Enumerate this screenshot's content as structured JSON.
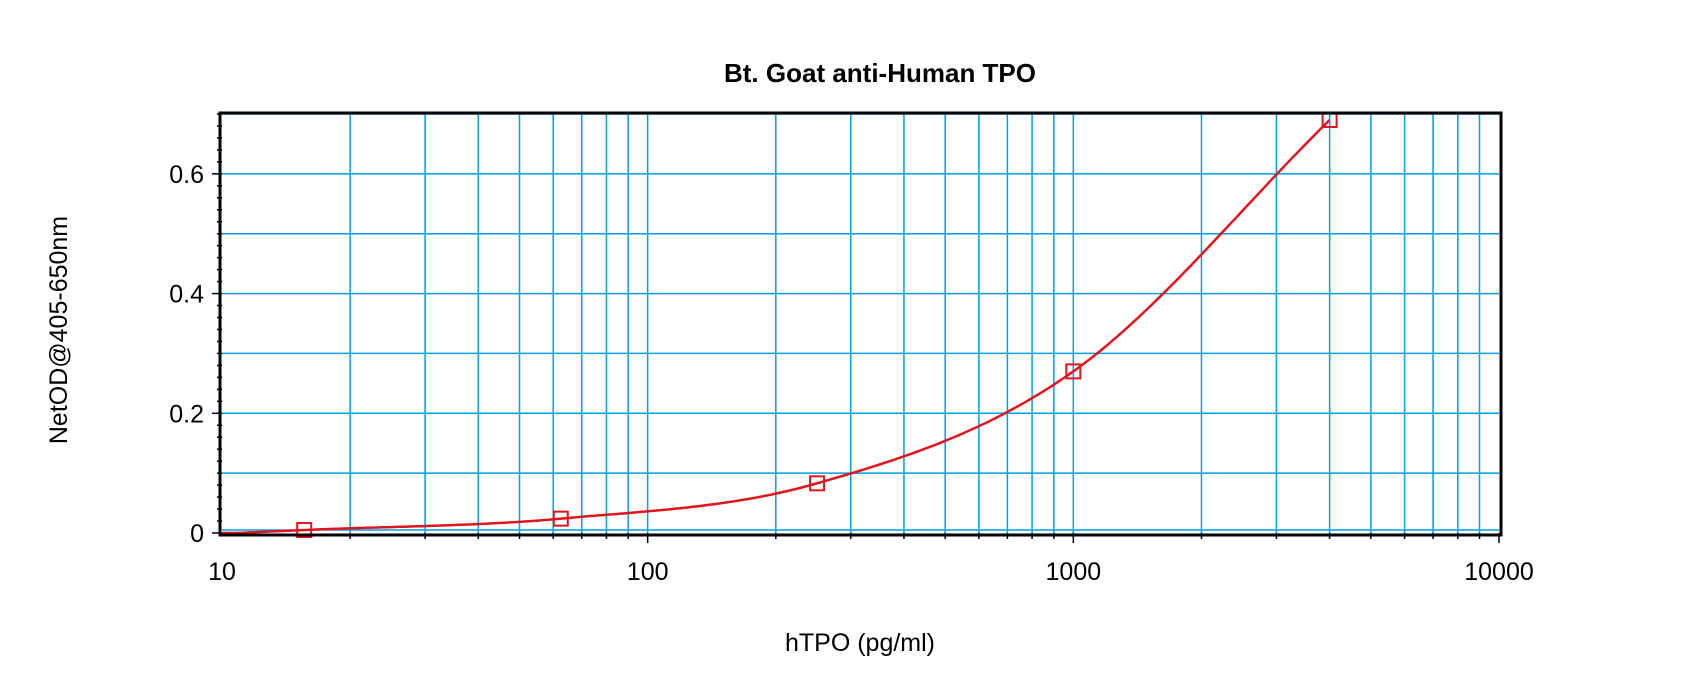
{
  "chart_data": {
    "type": "scatter",
    "title": "Bt. Goat anti-Human TPO",
    "xlabel": "hTPO (pg/ml)",
    "ylabel": "NetOD@405-650nm",
    "xscale": "log",
    "xlim": [
      10,
      10000
    ],
    "ylim": [
      0,
      0.7
    ],
    "x_ticks": [
      "10",
      "100",
      "1000",
      "10000"
    ],
    "y_ticks": [
      "0",
      "0.2",
      "0.4",
      "0.6"
    ],
    "grid": true,
    "legend": "none",
    "colors": {
      "grid": "#00a0e6",
      "series": "#e0141e",
      "frame": "#000000"
    },
    "series": [
      {
        "points": [
          {
            "x": 15.6,
            "y": 0.005
          },
          {
            "x": 62.5,
            "y": 0.024
          },
          {
            "x": 250,
            "y": 0.083
          },
          {
            "x": 1000,
            "y": 0.27
          },
          {
            "x": 4000,
            "y": 0.69
          }
        ],
        "fit": "curve"
      }
    ]
  }
}
